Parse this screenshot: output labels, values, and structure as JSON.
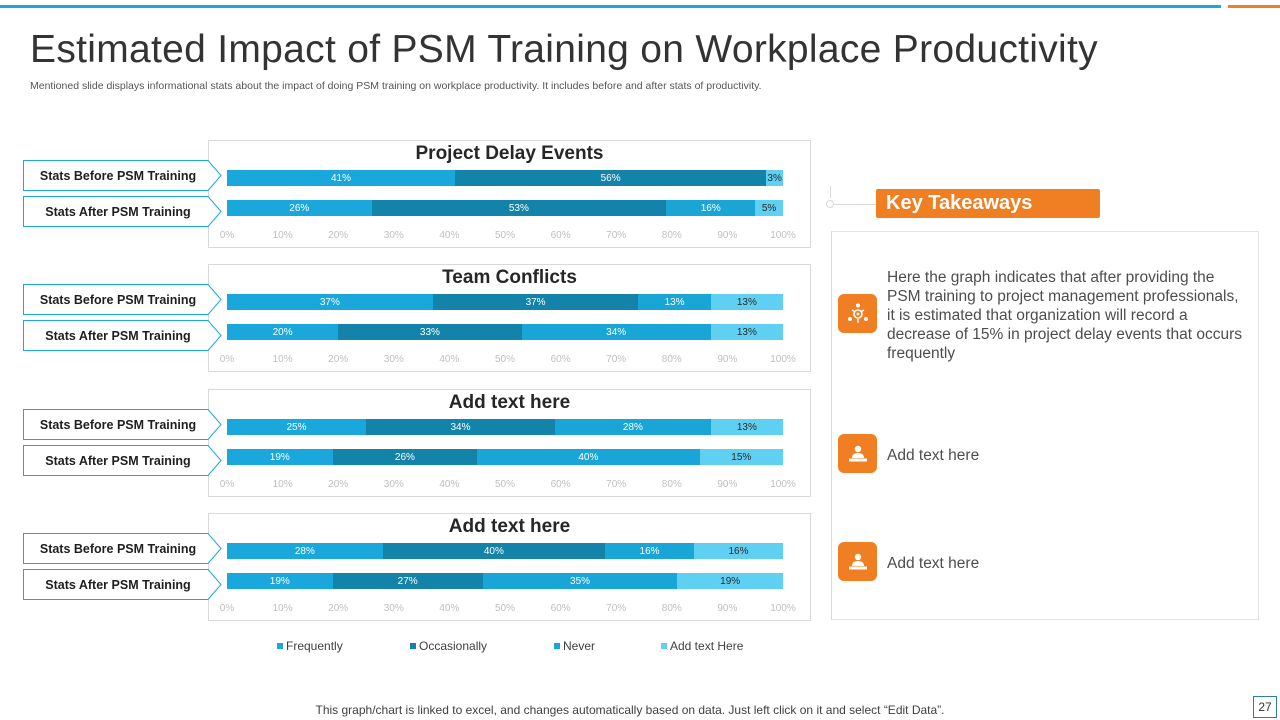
{
  "slide": {
    "title": "Estimated Impact of PSM Training on Workplace Productivity",
    "subtitle": "Mentioned slide displays informational stats about the impact of doing PSM training on workplace productivity.  It includes before and after stats of productivity.",
    "footer_note": "This graph/chart is linked to excel,  and changes automatically based on data. Just left click on it and select “Edit  Data”.",
    "page_number": "27",
    "accent_blue": "#1aa7dc",
    "accent_orange": "#f07f23"
  },
  "row_labels": {
    "before": "Stats Before PSM Training",
    "after": "Stats After PSM Training"
  },
  "chart_data": [
    {
      "type": "bar",
      "stacked": true,
      "orientation": "horizontal",
      "title": "Project Delay Events",
      "categories": [
        "Stats Before PSM Training",
        "Stats After PSM Training"
      ],
      "series": [
        {
          "name": "Frequently",
          "values": [
            41,
            26
          ]
        },
        {
          "name": "Occasionally",
          "values": [
            56,
            53
          ]
        },
        {
          "name": "Never",
          "values": [
            0,
            16
          ]
        },
        {
          "name": "Add text Here",
          "values": [
            3,
            5
          ]
        }
      ],
      "xlim": [
        0,
        100
      ],
      "ticks": [
        "0%",
        "10%",
        "20%",
        "30%",
        "40%",
        "50%",
        "60%",
        "70%",
        "80%",
        "90%",
        "100%"
      ]
    },
    {
      "type": "bar",
      "stacked": true,
      "orientation": "horizontal",
      "title": "Team Conflicts",
      "categories": [
        "Stats Before PSM Training",
        "Stats After PSM Training"
      ],
      "series": [
        {
          "name": "Frequently",
          "values": [
            37,
            20
          ]
        },
        {
          "name": "Occasionally",
          "values": [
            37,
            33
          ]
        },
        {
          "name": "Never",
          "values": [
            13,
            34
          ]
        },
        {
          "name": "Add text Here",
          "values": [
            13,
            13
          ]
        }
      ],
      "xlim": [
        0,
        100
      ],
      "ticks": [
        "0%",
        "10%",
        "20%",
        "30%",
        "40%",
        "50%",
        "60%",
        "70%",
        "80%",
        "90%",
        "100%"
      ]
    },
    {
      "type": "bar",
      "stacked": true,
      "orientation": "horizontal",
      "title": "Add text here",
      "categories": [
        "Stats Before PSM Training",
        "Stats After PSM Training"
      ],
      "series": [
        {
          "name": "Frequently",
          "values": [
            25,
            19
          ]
        },
        {
          "name": "Occasionally",
          "values": [
            34,
            26
          ]
        },
        {
          "name": "Never",
          "values": [
            28,
            40
          ]
        },
        {
          "name": "Add text Here",
          "values": [
            13,
            15
          ]
        }
      ],
      "xlim": [
        0,
        100
      ],
      "ticks": [
        "0%",
        "10%",
        "20%",
        "30%",
        "40%",
        "50%",
        "60%",
        "70%",
        "80%",
        "90%",
        "100%"
      ]
    },
    {
      "type": "bar",
      "stacked": true,
      "orientation": "horizontal",
      "title": "Add text here",
      "categories": [
        "Stats Before PSM Training",
        "Stats After PSM Training"
      ],
      "series": [
        {
          "name": "Frequently",
          "values": [
            28,
            19
          ]
        },
        {
          "name": "Occasionally",
          "values": [
            40,
            27
          ]
        },
        {
          "name": "Never",
          "values": [
            16,
            35
          ]
        },
        {
          "name": "Add text Here",
          "values": [
            16,
            19
          ]
        }
      ],
      "xlim": [
        0,
        100
      ],
      "ticks": [
        "0%",
        "10%",
        "20%",
        "30%",
        "40%",
        "50%",
        "60%",
        "70%",
        "80%",
        "90%",
        "100%"
      ]
    }
  ],
  "series_colors": [
    "#1aa7dc",
    "#1483a9",
    "#19a6d6",
    "#5fd0f2"
  ],
  "legend": [
    {
      "name": "Frequently",
      "color": "#1aa7dc"
    },
    {
      "name": "Occasionally",
      "color": "#1483a9"
    },
    {
      "name": "Never",
      "color": "#19a6d6"
    },
    {
      "name": "Add text Here",
      "color": "#5fd0f2"
    }
  ],
  "takeaways": {
    "title": "Key Takeaways",
    "items": [
      {
        "icon": "team-process-icon",
        "text": "Here the graph indicates that after providing the PSM training to project management professionals, it is estimated that organization will record a decrease of 15% in project delay events that occurs frequently"
      },
      {
        "icon": "person-desk-icon",
        "text": "Add text here"
      },
      {
        "icon": "person-desk-icon",
        "text": "Add text here"
      }
    ]
  }
}
